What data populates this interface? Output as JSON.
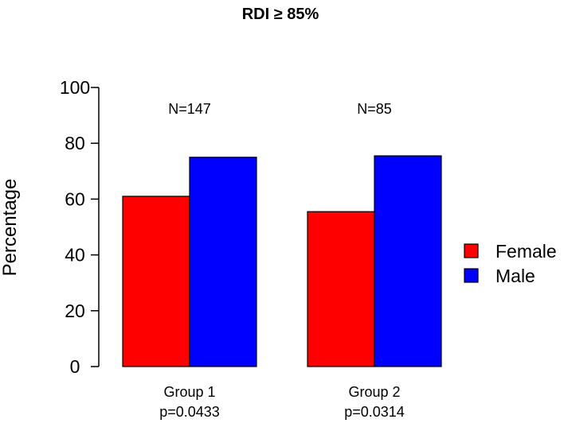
{
  "chart_data": {
    "type": "bar",
    "title": "RDI ≥ 85%",
    "xlabel": "",
    "ylabel": "Percentage",
    "ylim": [
      0,
      100
    ],
    "yticks": [
      0,
      20,
      40,
      60,
      80,
      100
    ],
    "categories": [
      "Group 1",
      "Group 2"
    ],
    "category_notes": [
      "p=0.0433",
      "p=0.0314"
    ],
    "annotations": [
      "N=147",
      "N=85"
    ],
    "series": [
      {
        "name": "Female",
        "color": "#ff0000",
        "values": [
          61,
          55.5
        ]
      },
      {
        "name": "Male",
        "color": "#0000ff",
        "values": [
          75,
          75.5
        ]
      }
    ],
    "legend_position": "right"
  }
}
